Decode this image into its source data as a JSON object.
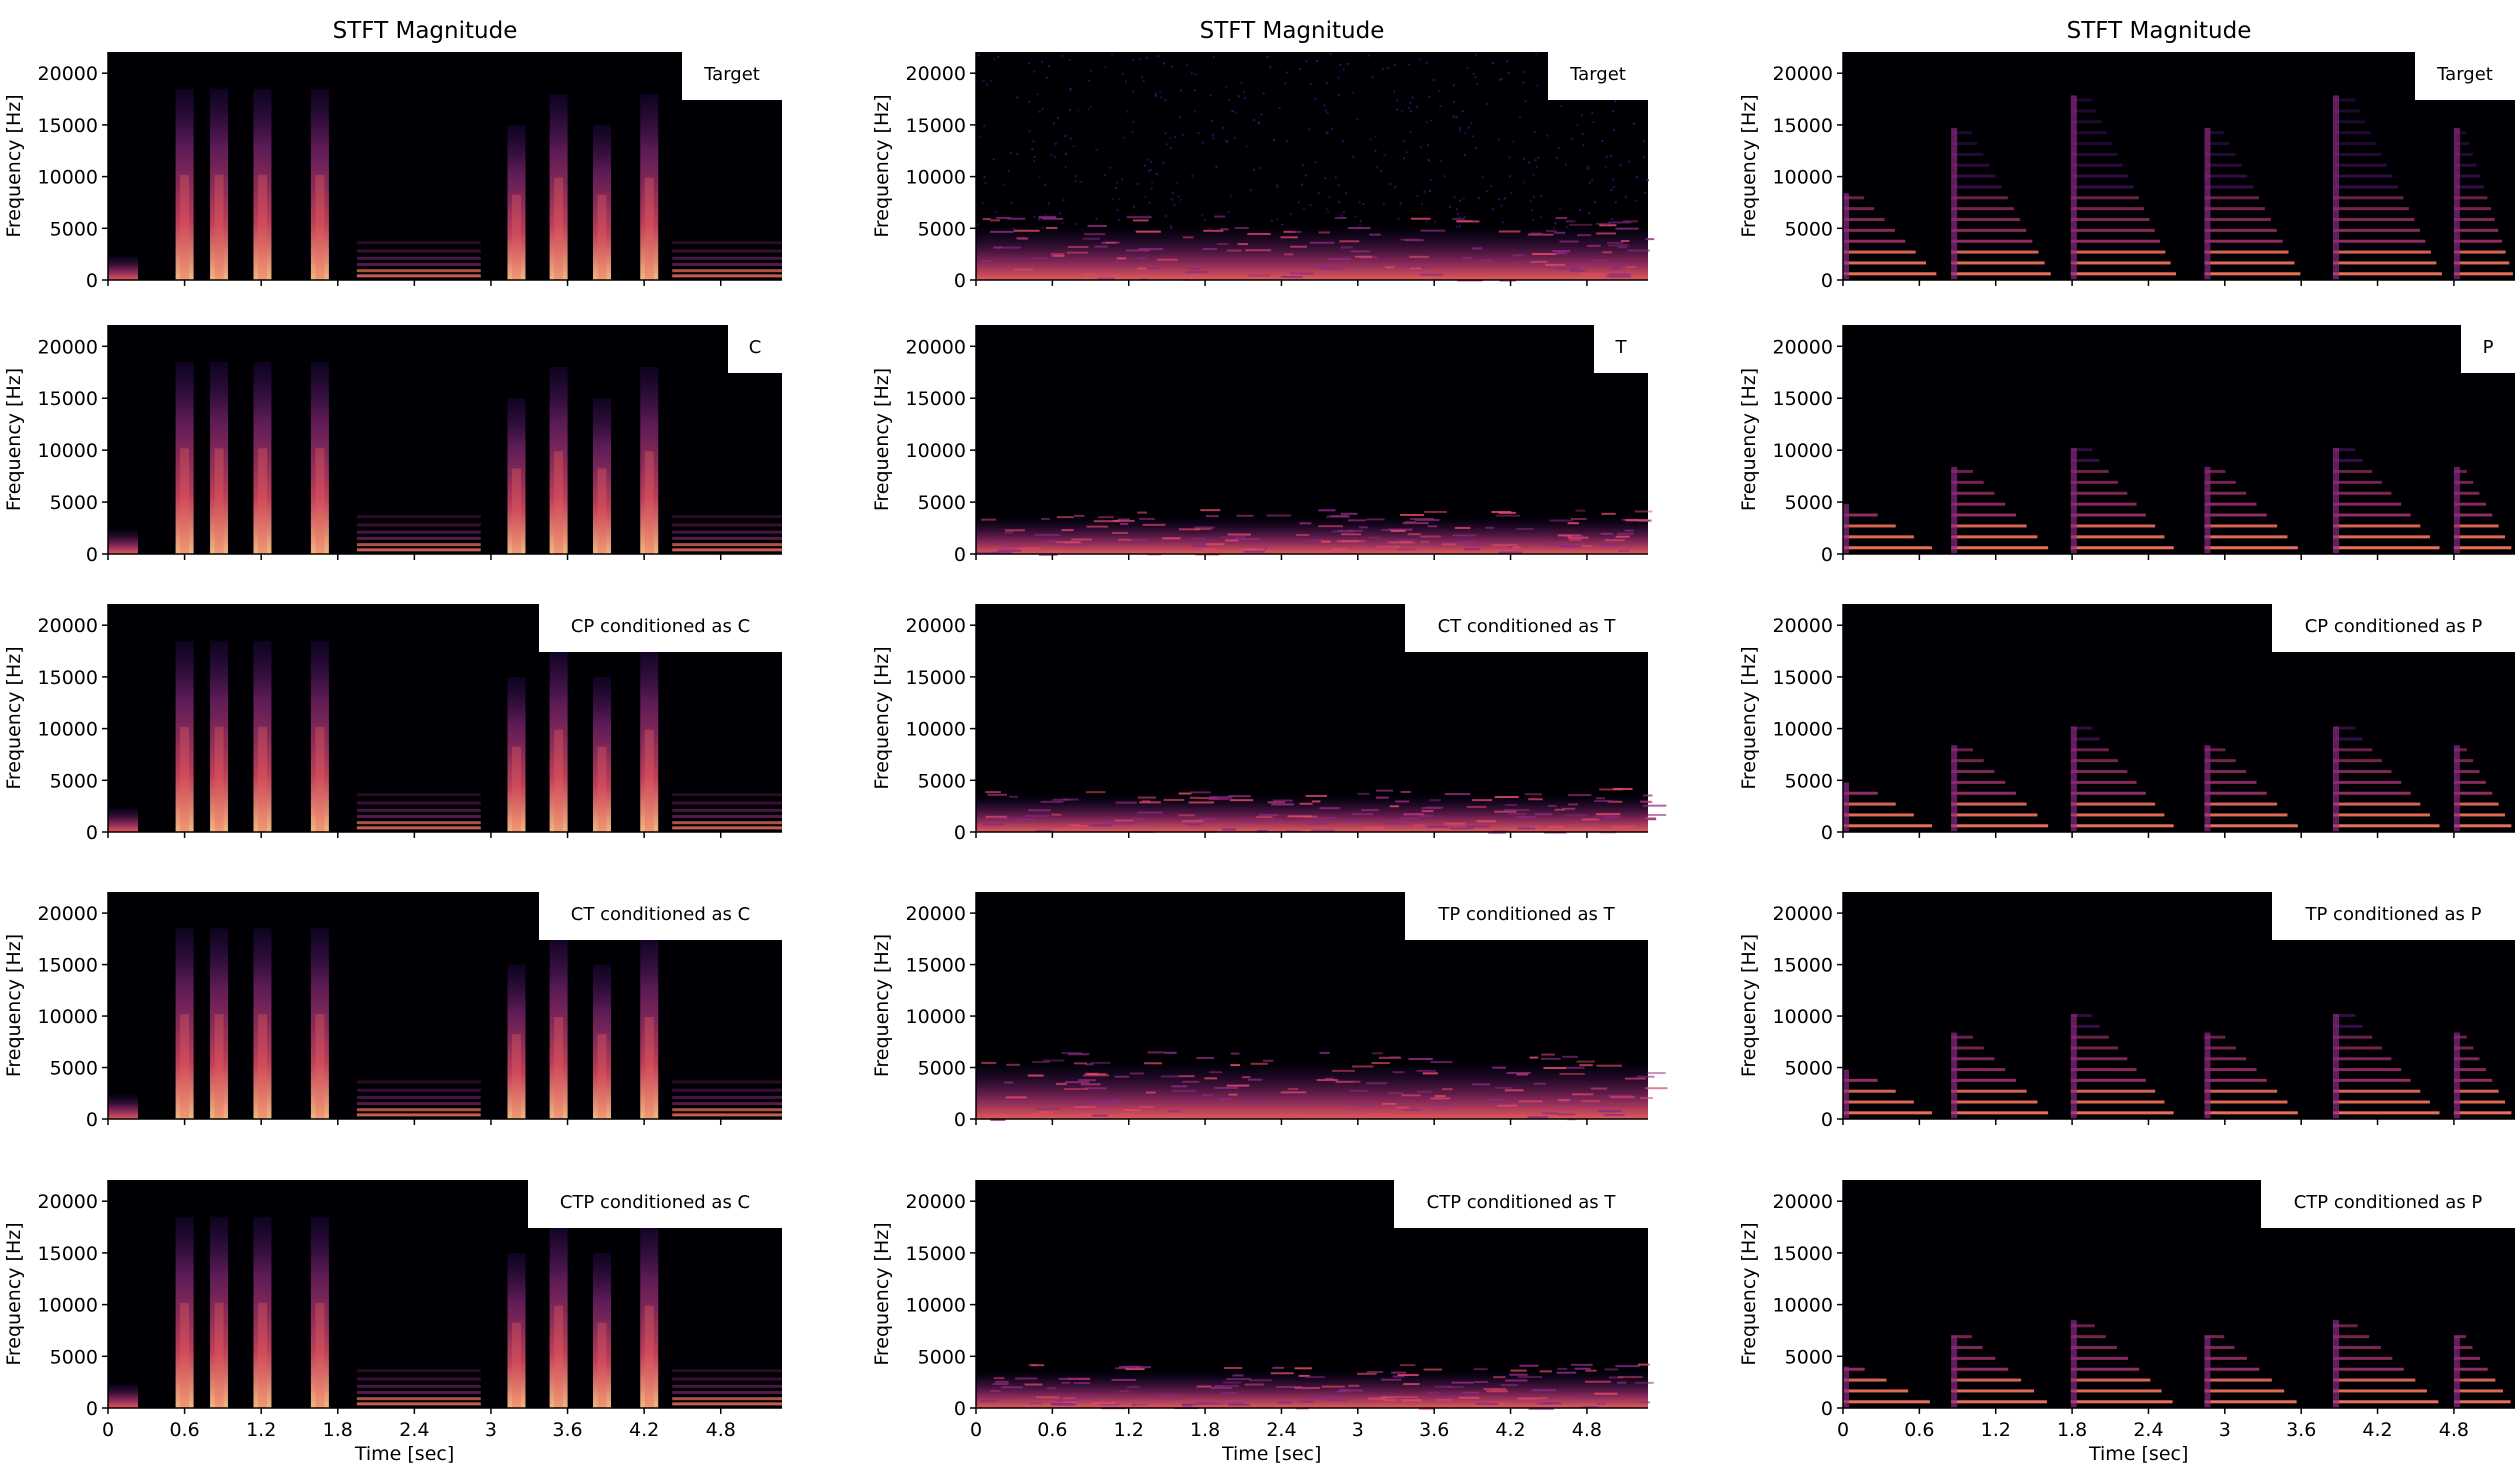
{
  "chart_data": [
    {
      "type": "heatmap",
      "title": "STFT Magnitude",
      "xlabel": "Time [sec]",
      "ylabel": "Frequency [Hz]",
      "xlim": [
        0,
        5.28
      ],
      "ylim": [
        0,
        22050
      ],
      "xticks": [
        "0",
        "0.6",
        "1.2",
        "1.8",
        "2.4",
        "3",
        "3.6",
        "4.2",
        "4.8"
      ],
      "yticks": [
        "0",
        "5000",
        "10000",
        "15000",
        "20000"
      ],
      "panels": [
        {
          "label": "Target"
        },
        {
          "label": "C"
        },
        {
          "label": "CP conditioned as C"
        },
        {
          "label": "CT conditioned as C"
        },
        {
          "label": "CTP conditioned as C"
        }
      ]
    },
    {
      "type": "heatmap",
      "title": "STFT Magnitude",
      "xlabel": "Time [sec]",
      "ylabel": "Frequency [Hz]",
      "xlim": [
        0,
        5.28
      ],
      "ylim": [
        0,
        22050
      ],
      "xticks": [
        "0",
        "0.6",
        "1.2",
        "1.8",
        "2.4",
        "3",
        "3.6",
        "4.2",
        "4.8"
      ],
      "yticks": [
        "0",
        "5000",
        "10000",
        "15000",
        "20000"
      ],
      "panels": [
        {
          "label": "Target"
        },
        {
          "label": "T"
        },
        {
          "label": "CT conditioned as T"
        },
        {
          "label": "TP conditioned as T"
        },
        {
          "label": "CTP conditioned as T"
        }
      ]
    },
    {
      "type": "heatmap",
      "title": "STFT Magnitude",
      "xlabel": "Time [sec]",
      "ylabel": "Frequency [Hz]",
      "xlim": [
        0,
        5.28
      ],
      "ylim": [
        0,
        22050
      ],
      "xticks": [
        "0",
        "0.6",
        "1.2",
        "1.8",
        "2.4",
        "3",
        "3.6",
        "4.2",
        "4.8"
      ],
      "yticks": [
        "0",
        "5000",
        "10000",
        "15000",
        "20000"
      ],
      "panels": [
        {
          "label": "Target"
        },
        {
          "label": "P"
        },
        {
          "label": "CP conditioned as P"
        },
        {
          "label": "TP conditioned as P"
        },
        {
          "label": "CTP conditioned as P"
        }
      ]
    }
  ],
  "colors": {
    "plot_background": "#000004",
    "colormap": [
      "#000004",
      "#3b0f70",
      "#8c2981",
      "#de4968",
      "#fe9f6d",
      "#fcfdbf"
    ]
  }
}
